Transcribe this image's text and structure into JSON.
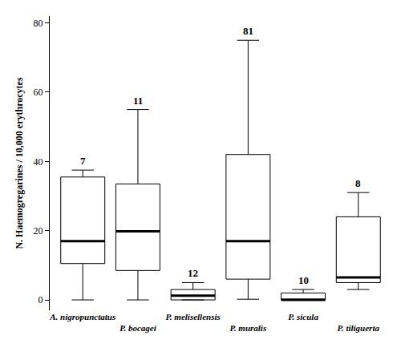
{
  "chart_data": {
    "type": "box",
    "y_label": "N. Haemogregarines / 10,000 erythrocytes",
    "categories": [
      "A. nigropunctatus",
      "P. bocagei",
      "P. melisellensis",
      "P. muralis",
      "P. sicula",
      "P. tiliguerta"
    ],
    "lower": [
      0,
      0,
      0,
      0.2,
      0,
      3
    ],
    "q1": [
      10.5,
      8.5,
      0,
      6,
      0,
      5
    ],
    "median": [
      17,
      19.8,
      1.2,
      17,
      0,
      6.5
    ],
    "q3": [
      35.5,
      33.5,
      3,
      42,
      2,
      24
    ],
    "upper": [
      37.5,
      55,
      5,
      75,
      3,
      31
    ],
    "n": [
      7,
      11,
      12,
      81,
      10,
      8
    ],
    "color": "#000000",
    "ylim": [
      -3,
      82
    ],
    "yticks": [
      0,
      20,
      40,
      60,
      80
    ],
    "grid": false
  }
}
